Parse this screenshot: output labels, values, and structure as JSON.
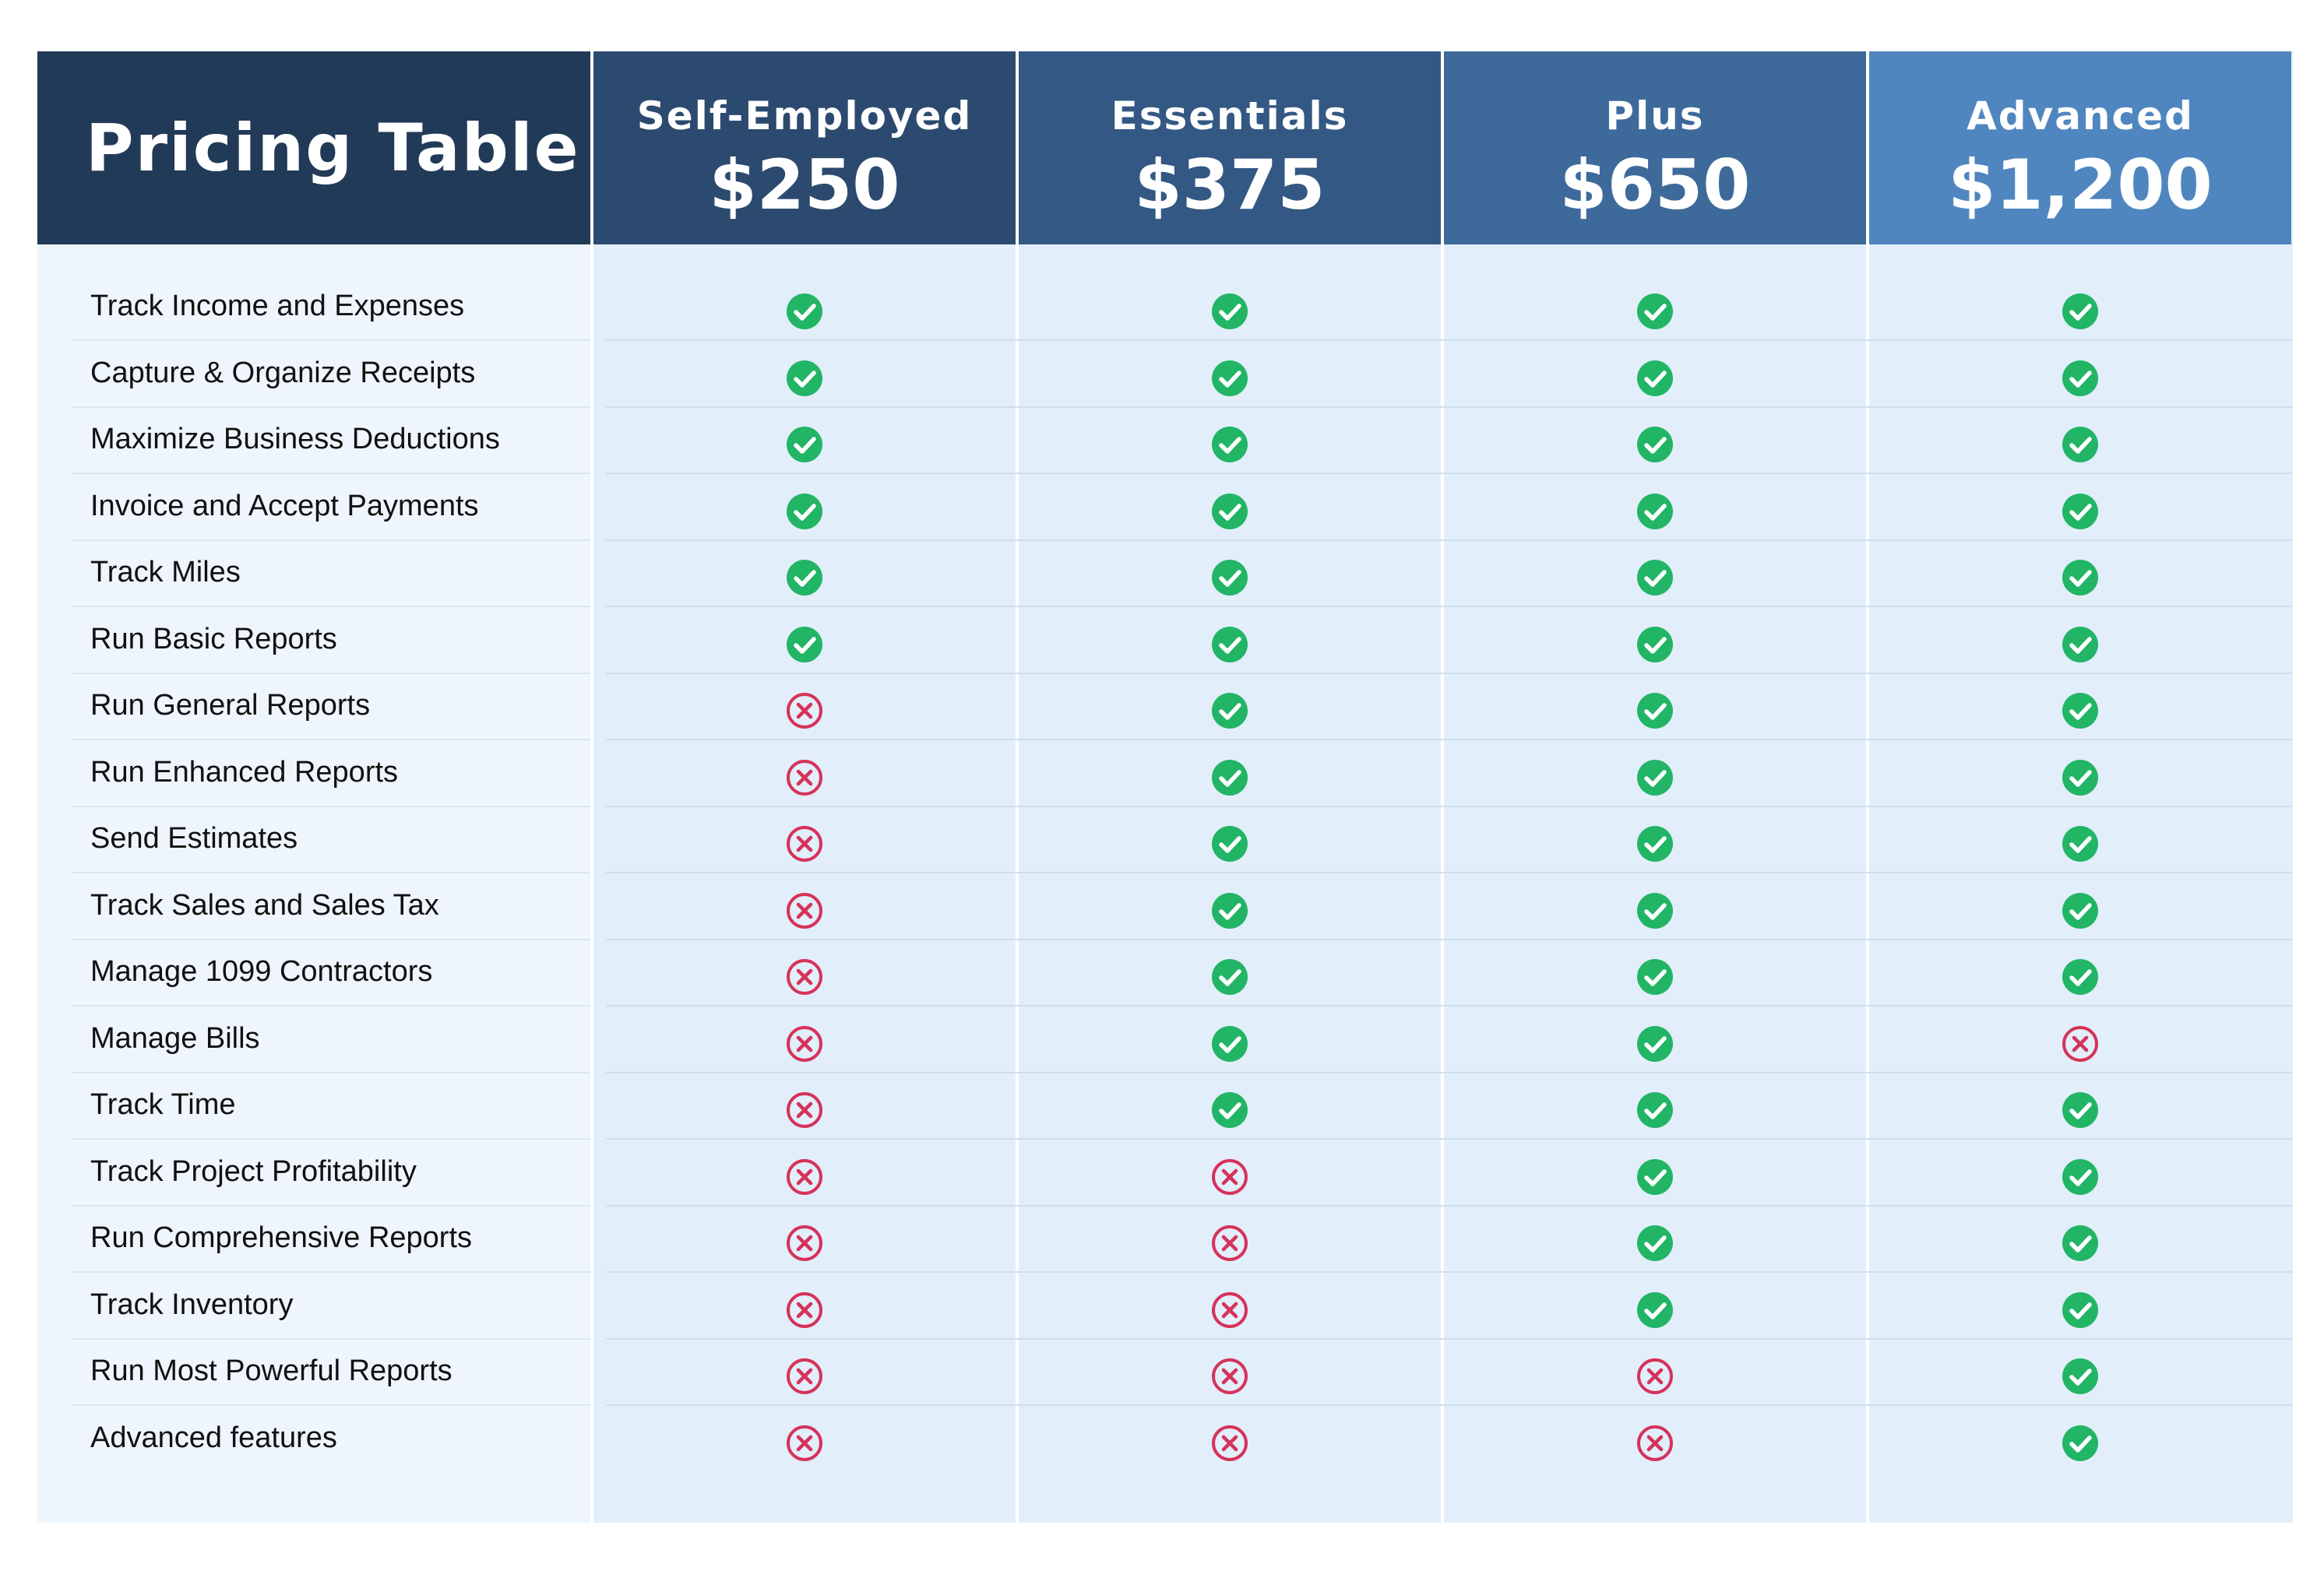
{
  "header": {
    "title": "Pricing Table"
  },
  "plans": [
    {
      "name": "Self-Employed",
      "price": "$250",
      "color": "#2c4a6f"
    },
    {
      "name": "Essentials",
      "price": "$375",
      "color": "#335883"
    },
    {
      "name": "Plus",
      "price": "$650",
      "color": "#3d6a9b"
    },
    {
      "name": "Advanced",
      "price": "$1,200",
      "color": "#4f86bf"
    }
  ],
  "colors": {
    "title_bg": "#213a57",
    "feature_col_bg": "#eef5fc",
    "plan_col_bg": "#e2eefa",
    "check": "#21b565",
    "cross": "#d6325a"
  },
  "features": [
    {
      "label": "Track Income and Expenses",
      "included": [
        true,
        true,
        true,
        true
      ]
    },
    {
      "label": "Capture & Organize Receipts",
      "included": [
        true,
        true,
        true,
        true
      ]
    },
    {
      "label": "Maximize Business Deductions",
      "included": [
        true,
        true,
        true,
        true
      ]
    },
    {
      "label": "Invoice and Accept Payments",
      "included": [
        true,
        true,
        true,
        true
      ]
    },
    {
      "label": "Track Miles",
      "included": [
        true,
        true,
        true,
        true
      ]
    },
    {
      "label": "Run Basic Reports",
      "included": [
        true,
        true,
        true,
        true
      ]
    },
    {
      "label": "Run General Reports",
      "included": [
        false,
        true,
        true,
        true
      ]
    },
    {
      "label": "Run Enhanced Reports",
      "included": [
        false,
        true,
        true,
        true
      ]
    },
    {
      "label": "Send Estimates",
      "included": [
        false,
        true,
        true,
        true
      ]
    },
    {
      "label": "Track Sales and Sales Tax",
      "included": [
        false,
        true,
        true,
        true
      ]
    },
    {
      "label": "Manage 1099 Contractors",
      "included": [
        false,
        true,
        true,
        true
      ]
    },
    {
      "label": "Manage Bills",
      "included": [
        false,
        true,
        true,
        false
      ]
    },
    {
      "label": "Track Time",
      "included": [
        false,
        true,
        true,
        true
      ]
    },
    {
      "label": "Track Project Profitability",
      "included": [
        false,
        false,
        true,
        true
      ]
    },
    {
      "label": "Run Comprehensive Reports",
      "included": [
        false,
        false,
        true,
        true
      ]
    },
    {
      "label": "Track Inventory",
      "included": [
        false,
        false,
        true,
        true
      ]
    },
    {
      "label": "Run Most Powerful Reports",
      "included": [
        false,
        false,
        false,
        true
      ]
    },
    {
      "label": "Advanced features",
      "included": [
        false,
        false,
        false,
        true
      ]
    }
  ]
}
